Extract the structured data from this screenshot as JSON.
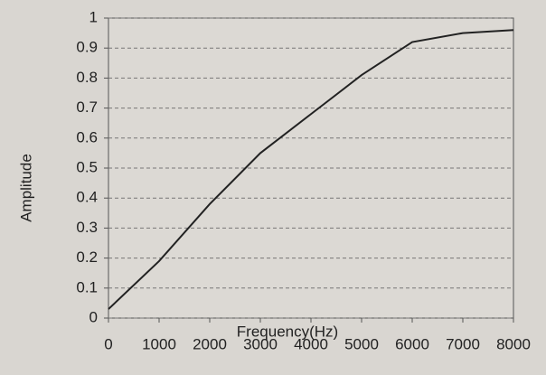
{
  "chart_data": {
    "type": "line",
    "x_label": "Frequency(Hz)",
    "y_label": "Amplitude",
    "x": [
      0,
      1000,
      2000,
      3000,
      4000,
      5000,
      6000,
      7000,
      8000
    ],
    "series": [
      {
        "name": "Amplitude",
        "color": "#222222",
        "values": [
          0.03,
          0.19,
          0.38,
          0.55,
          0.68,
          0.81,
          0.92,
          0.95,
          0.96
        ]
      }
    ],
    "xlim": [
      0,
      8000
    ],
    "xticks": [
      0,
      1000,
      2000,
      3000,
      4000,
      5000,
      6000,
      7000,
      8000
    ],
    "ylim": [
      0,
      1
    ],
    "yticks": [
      0,
      0.1,
      0.2,
      0.3,
      0.4,
      0.5,
      0.6,
      0.7,
      0.8,
      0.9,
      1
    ],
    "grid": true
  }
}
